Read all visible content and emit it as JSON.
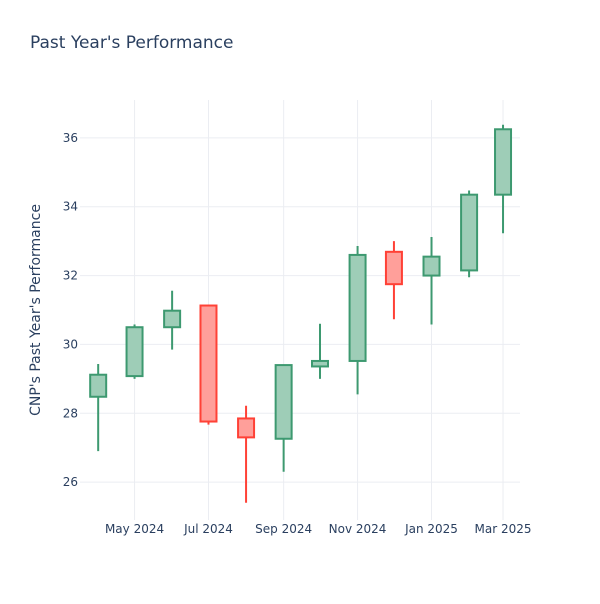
{
  "chart_data": {
    "type": "candlestick",
    "title": "Past Year's Performance",
    "ylabel": "CNP's Past Year's Performance",
    "xlabel": "",
    "ylim": [
      24.9,
      37.1
    ],
    "y_ticks": [
      26,
      28,
      30,
      32,
      34,
      36
    ],
    "x_ticks": [
      {
        "label": "May 2024",
        "date": "2024-05-01"
      },
      {
        "label": "Jul 2024",
        "date": "2024-07-01"
      },
      {
        "label": "Sep 2024",
        "date": "2024-09-01"
      },
      {
        "label": "Nov 2024",
        "date": "2024-11-01"
      },
      {
        "label": "Jan 2025",
        "date": "2025-01-01"
      },
      {
        "label": "Mar 2025",
        "date": "2025-03-01"
      }
    ],
    "x_range": [
      "2024-03-17",
      "2025-03-15"
    ],
    "colors": {
      "increasing": "#3d9970",
      "increasing_fill": "#9ecdb7",
      "decreasing": "#ff4136",
      "decreasing_fill": "#ff9f9a",
      "grid": "#ebedf2"
    },
    "series": [
      {
        "x": [
          "2024-04-01",
          "2024-05-01",
          "2024-06-01",
          "2024-07-01",
          "2024-08-01",
          "2024-09-01",
          "2024-10-01",
          "2024-11-01",
          "2024-12-01",
          "2025-01-01",
          "2025-02-01",
          "2025-03-01"
        ],
        "open": [
          28.48,
          29.08,
          30.5,
          31.13,
          27.85,
          27.26,
          29.36,
          29.52,
          32.69,
          32.0,
          32.15,
          34.35
        ],
        "high": [
          29.43,
          30.58,
          31.56,
          31.16,
          28.22,
          29.4,
          30.6,
          32.86,
          33.0,
          33.12,
          34.47,
          36.38
        ],
        "low": [
          26.9,
          29.0,
          29.85,
          27.67,
          25.4,
          26.3,
          29.0,
          28.55,
          30.73,
          30.58,
          31.95,
          33.23
        ],
        "close": [
          29.12,
          30.5,
          30.98,
          27.76,
          27.3,
          29.4,
          29.52,
          32.6,
          31.75,
          32.55,
          34.35,
          36.25
        ]
      }
    ]
  }
}
